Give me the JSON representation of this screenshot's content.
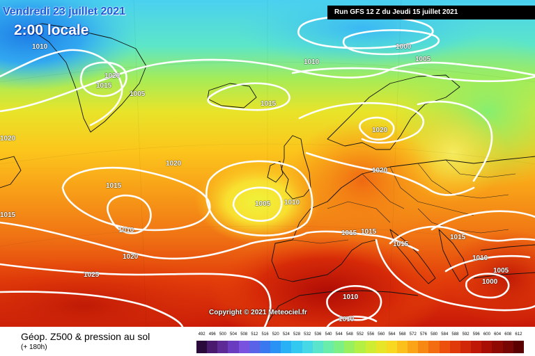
{
  "header": {
    "date": "Vendredi 23 juillet 2021",
    "local_time": "2:00 locale",
    "run_info": "Run GFS 12 Z du Jeudi 15 juillet 2021"
  },
  "copyright": "Copyright © 2021 Meteociel.fr",
  "footer": {
    "title": "Géop. Z500 & pression au sol",
    "subtitle": "(+ 180h)"
  },
  "legend": {
    "ticks": [
      "492",
      "496",
      "500",
      "504",
      "508",
      "512",
      "516",
      "520",
      "524",
      "528",
      "532",
      "536",
      "540",
      "544",
      "548",
      "552",
      "556",
      "560",
      "564",
      "568",
      "572",
      "576",
      "580",
      "584",
      "588",
      "592",
      "596",
      "600",
      "604",
      "608",
      "612"
    ],
    "colors": [
      "#2a0a3a",
      "#4a1a6e",
      "#5e2a96",
      "#6a3cc0",
      "#7a52e0",
      "#5a62e8",
      "#3a78f0",
      "#2a92f4",
      "#2ab0f4",
      "#32c8f0",
      "#46d8e6",
      "#5ae4cc",
      "#6aecaa",
      "#7cf084",
      "#98f05e",
      "#b4f044",
      "#d0ec32",
      "#e8e428",
      "#f8d820",
      "#fcc01c",
      "#fca418",
      "#f88814",
      "#f46c10",
      "#ec500c",
      "#e03a0a",
      "#d02808",
      "#c01806",
      "#a80e04",
      "#900a04",
      "#780604",
      "#5a0000"
    ]
  },
  "isobars": [
    "1010",
    "1020",
    "1015",
    "1005",
    "1015",
    "1010",
    "1000",
    "1005",
    "1020",
    "1020",
    "1020",
    "1015",
    "1005",
    "1010",
    "1015",
    "1010",
    "1020",
    "1025",
    "1015",
    "1015",
    "1015",
    "1015",
    "1010",
    "1005",
    "1000",
    "1010",
    "1010",
    "1020"
  ],
  "colors": {
    "accent": "#1f5bd8",
    "run_box": "#000000"
  }
}
